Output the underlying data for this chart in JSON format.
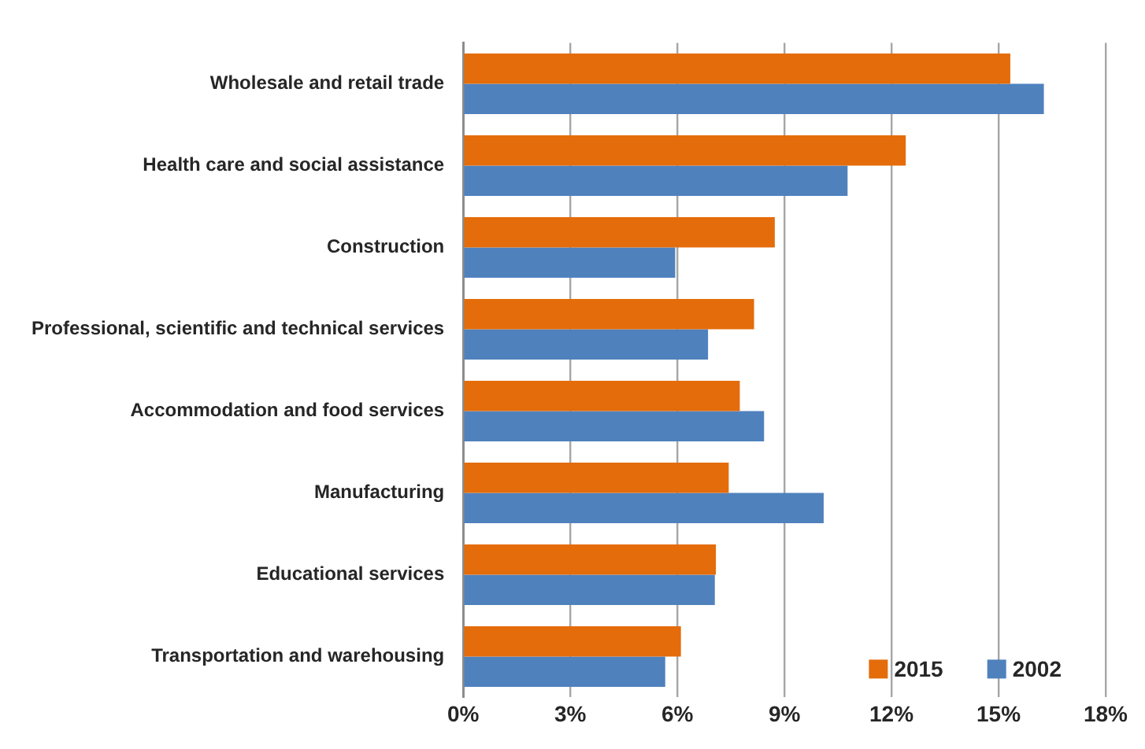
{
  "chart_data": {
    "type": "bar",
    "orientation": "horizontal",
    "categories": [
      "Wholesale and retail trade",
      "Health care and social assistance",
      "Construction",
      "Professional, scientific and technical services",
      "Accommodation and food services",
      "Manufacturing",
      "Educational services",
      "Transportation and warehousing"
    ],
    "series": [
      {
        "name": "2015",
        "color": "#e46c0a",
        "values": [
          15.33,
          12.4,
          8.73,
          8.15,
          7.75,
          7.44,
          7.08,
          6.1
        ]
      },
      {
        "name": "2002",
        "color": "#4f81bd",
        "values": [
          16.27,
          10.77,
          5.94,
          6.86,
          8.43,
          10.1,
          7.05,
          5.66
        ]
      }
    ],
    "xlim": [
      0,
      18
    ],
    "xticks": [
      {
        "value": 0,
        "label": "0%"
      },
      {
        "value": 3,
        "label": "3%"
      },
      {
        "value": 6,
        "label": "6%"
      },
      {
        "value": 9,
        "label": "9%"
      },
      {
        "value": 12,
        "label": "12%"
      },
      {
        "value": 15,
        "label": "15%"
      },
      {
        "value": 18,
        "label": "18%"
      }
    ],
    "grid": "x",
    "legend": "bottom right"
  }
}
